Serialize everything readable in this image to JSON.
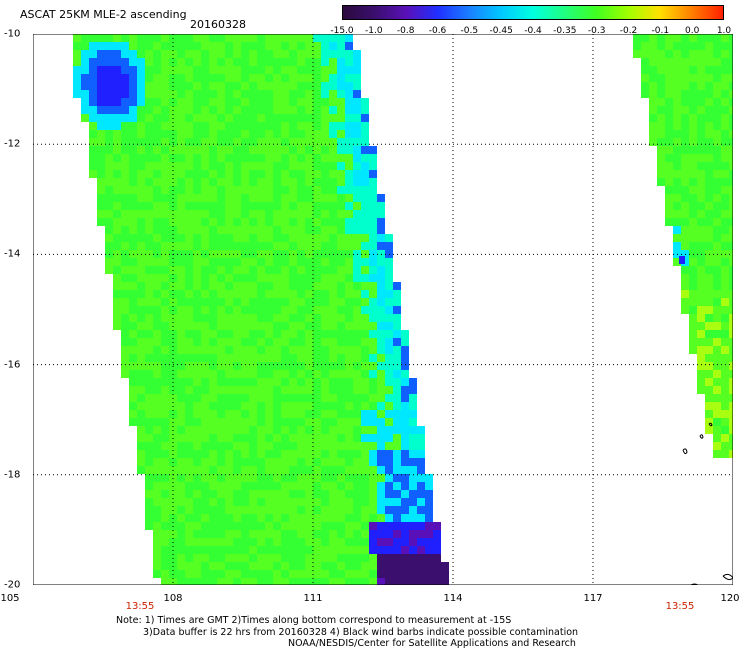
{
  "header": {
    "title": "ASCAT 25KM MLE-2 ascending",
    "date": "20160328"
  },
  "colorbar": {
    "labels": [
      "-15.0",
      "-1.0",
      "-0.8",
      "-0.6",
      "-0.5",
      "-0.45",
      "-0.4",
      "-0.35",
      "-0.3",
      "-0.2",
      "-0.1",
      "0.0",
      "1.0"
    ],
    "colors": [
      "#2b0a3d",
      "#3a0f6e",
      "#5a10b8",
      "#2030ff",
      "#1a80ff",
      "#00c8ff",
      "#00ffe0",
      "#20ff80",
      "#40ff20",
      "#a0ff00",
      "#ffe000",
      "#ff8000",
      "#ff2000"
    ]
  },
  "map": {
    "lon_labels": [
      "105",
      "108",
      "111",
      "114",
      "117",
      "120"
    ],
    "lat_labels": [
      "-10",
      "-12",
      "-14",
      "-16",
      "-18",
      "-20"
    ],
    "time_labels": [
      "13:55",
      "13:55"
    ],
    "swath_colors": {
      "green": "#33ff33",
      "light_green": "#55ff22",
      "cyan": "#00e8ff",
      "teal": "#00ffcc",
      "blue": "#1060ff",
      "deep_blue": "#2020ff",
      "purple": "#3a0f6e",
      "violet": "#5a10b8",
      "yellow_green": "#a8ff10"
    }
  },
  "notes": {
    "line1": "Note: 1) Times are GMT 2)Times along bottom correspond to measurement at -15S",
    "line2": "3)Data buffer is 22 hrs from 20160328 4) Black wind barbs indicate possible contamination",
    "line3": "NOAA/NESDIS/Center for Satellite Applications and Research"
  }
}
